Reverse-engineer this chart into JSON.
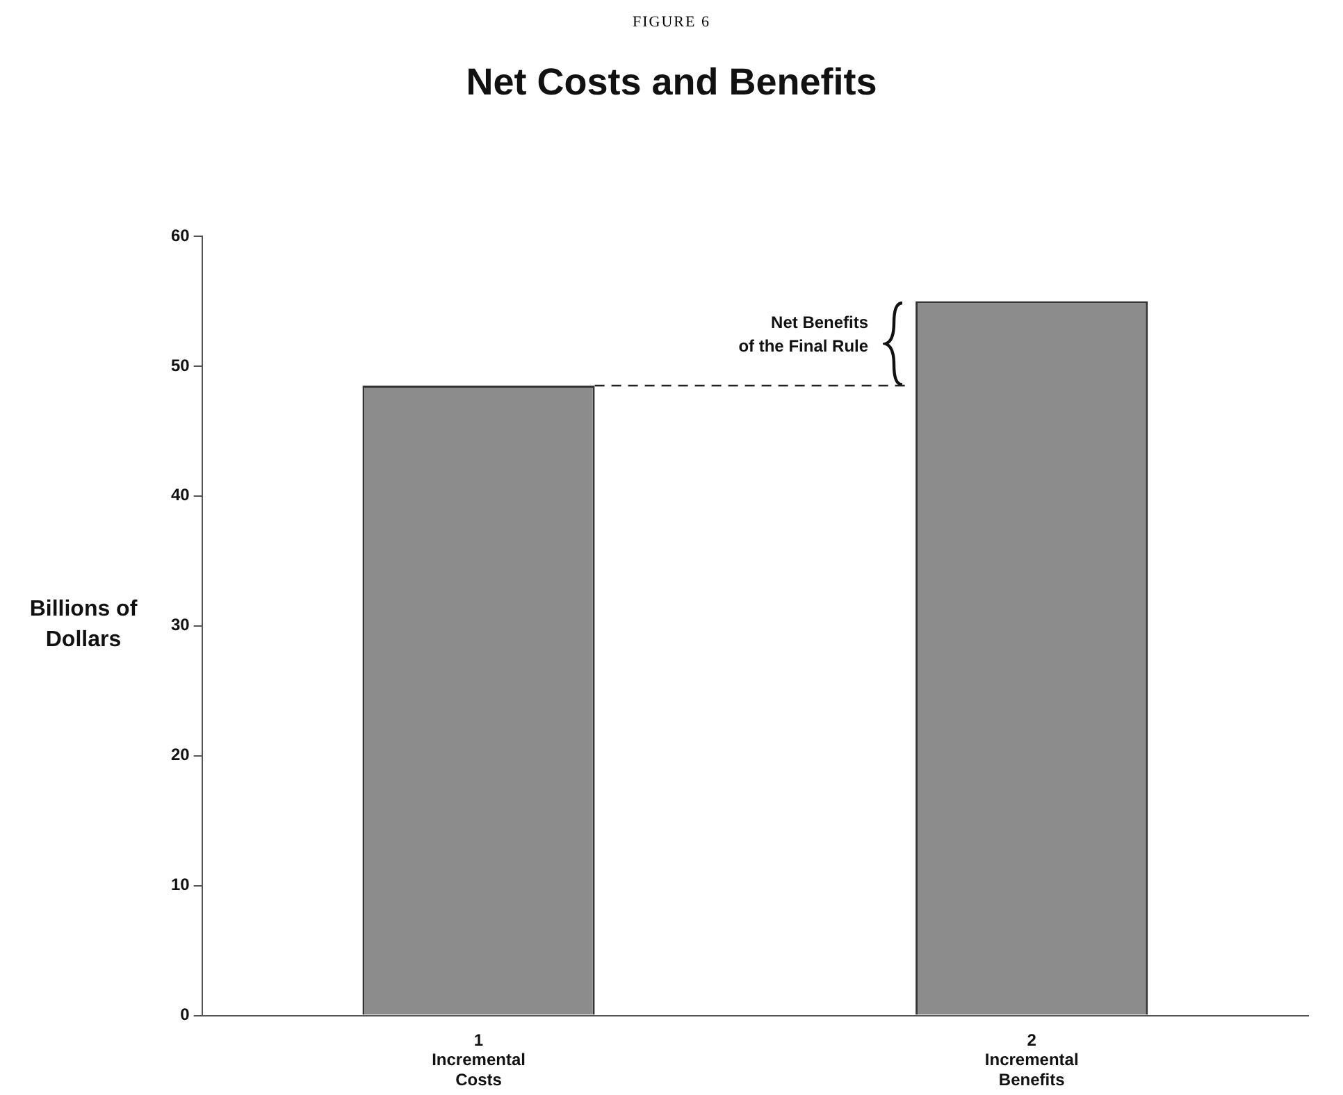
{
  "chart_data": {
    "type": "bar",
    "title": "Net Costs and Benefits",
    "ylabel": "Billions of Dollars",
    "annotations": [
      "FIGURE 6"
    ],
    "categories": [
      "1\nIncremental\nCosts",
      "2\nIncremental\nBenefits"
    ],
    "values": [
      48.5,
      55
    ],
    "color": "#8c8c8c",
    "ylim": [
      0,
      60
    ],
    "yticks": [
      0,
      10,
      20,
      30,
      40,
      50,
      60
    ],
    "ref_lines": [
      {
        "axis": "y",
        "value": 48.5,
        "label": "Net Benefits\nof the Final Rule",
        "line_style": "dashed"
      }
    ]
  }
}
